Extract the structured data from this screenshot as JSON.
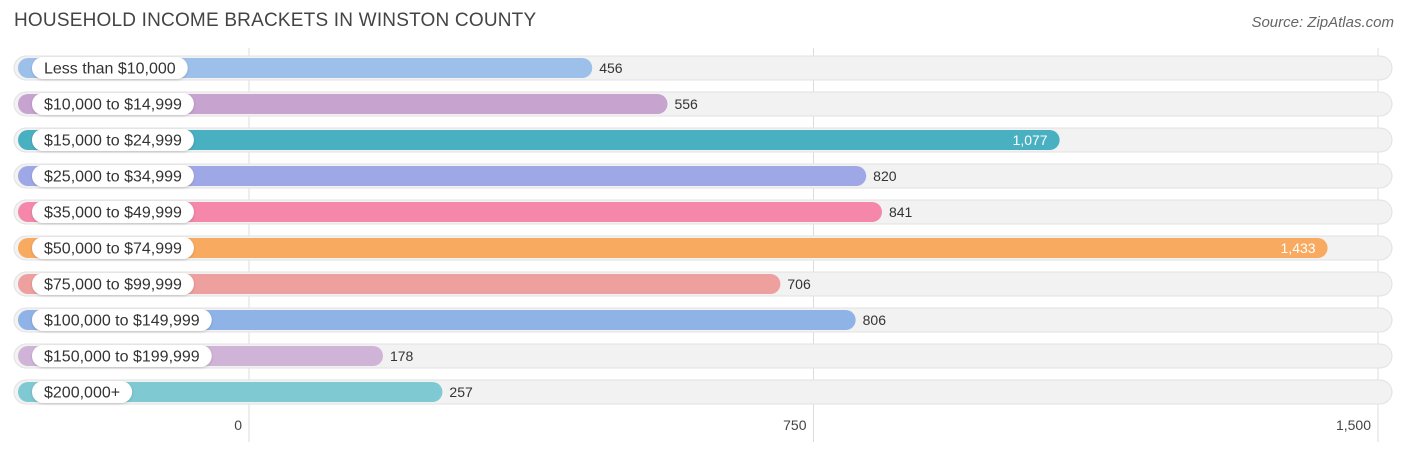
{
  "header": {
    "title": "HOUSEHOLD INCOME BRACKETS IN WINSTON COUNTY",
    "source": "Source: ZipAtlas.com"
  },
  "chart_data": {
    "type": "bar",
    "orientation": "horizontal",
    "title": "HOUSEHOLD INCOME BRACKETS IN WINSTON COUNTY",
    "xlabel": "",
    "ylabel": "",
    "xlim": [
      0,
      1500
    ],
    "ticks": [
      0,
      750,
      1500
    ],
    "tick_labels": [
      "0",
      "750",
      "1,500"
    ],
    "grid": true,
    "categories": [
      "Less than $10,000",
      "$10,000 to $14,999",
      "$15,000 to $24,999",
      "$25,000 to $34,999",
      "$35,000 to $49,999",
      "$50,000 to $74,999",
      "$75,000 to $99,999",
      "$100,000 to $149,999",
      "$150,000 to $199,999",
      "$200,000+"
    ],
    "values": [
      456,
      556,
      1077,
      820,
      841,
      1433,
      706,
      806,
      178,
      257
    ],
    "value_labels": [
      "456",
      "556",
      "1,077",
      "820",
      "841",
      "1,433",
      "706",
      "806",
      "178",
      "257"
    ],
    "colors": [
      "#9dc0ea",
      "#c7a3d0",
      "#48b0c0",
      "#9fa8e6",
      "#f487aa",
      "#f8aa60",
      "#eea09e",
      "#8fb3e6",
      "#cfb4d8",
      "#7ec9d2"
    ],
    "labels_inside": [
      false,
      false,
      true,
      false,
      false,
      true,
      false,
      false,
      false,
      false
    ]
  }
}
